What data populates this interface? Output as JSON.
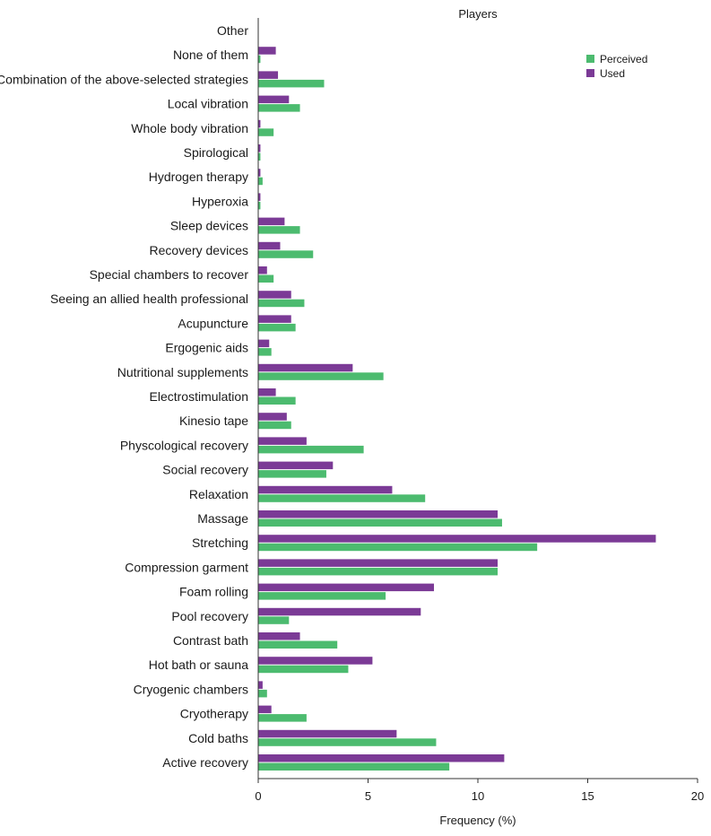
{
  "chart_data": {
    "type": "bar",
    "orientation": "horizontal",
    "title": "Players",
    "xlabel": "Frequency (%)",
    "ylabel": "",
    "xlim": [
      0,
      20
    ],
    "xticks": [
      0,
      5,
      10,
      15,
      20
    ],
    "legend_position": "top-right",
    "grid": false,
    "categories": [
      "Other",
      "None of them",
      "Combination of the above-selected strategies",
      "Local vibration",
      "Whole body vibration",
      "Spirological",
      "Hydrogen therapy",
      "Hyperoxia",
      "Sleep devices",
      "Recovery devices",
      "Special chambers to recover",
      "Seeing an allied health professional",
      "Acupuncture",
      "Ergogenic aids",
      "Nutritional supplements",
      "Electrostimulation",
      "Kinesio tape",
      "Physcological recovery",
      "Social recovery",
      "Relaxation",
      "Massage",
      "Stretching",
      "Compression garment",
      "Foam rolling",
      "Pool recovery",
      "Contrast bath",
      "Hot bath or sauna",
      "Cryogenic chambers",
      "Cryotherapy",
      "Cold baths",
      "Active recovery"
    ],
    "series": [
      {
        "name": "Used",
        "color": "#7b3a96",
        "values": [
          0,
          0.8,
          0.9,
          1.4,
          0.1,
          0.1,
          0.1,
          0.1,
          1.2,
          1.0,
          0.4,
          1.5,
          1.5,
          0.5,
          4.3,
          0.8,
          1.3,
          2.2,
          3.4,
          6.1,
          10.9,
          18.1,
          10.9,
          8.0,
          7.4,
          1.9,
          5.2,
          0.2,
          0.6,
          6.3,
          11.2
        ]
      },
      {
        "name": "Perceived",
        "color": "#4cbb6f",
        "values": [
          0,
          0.1,
          3.0,
          1.9,
          0.7,
          0.1,
          0.2,
          0.1,
          1.9,
          2.5,
          0.7,
          2.1,
          1.7,
          0.6,
          5.7,
          1.7,
          1.5,
          4.8,
          3.1,
          7.6,
          11.1,
          12.7,
          10.9,
          5.8,
          1.4,
          3.6,
          4.1,
          0.4,
          2.2,
          8.1,
          8.7
        ]
      }
    ]
  }
}
